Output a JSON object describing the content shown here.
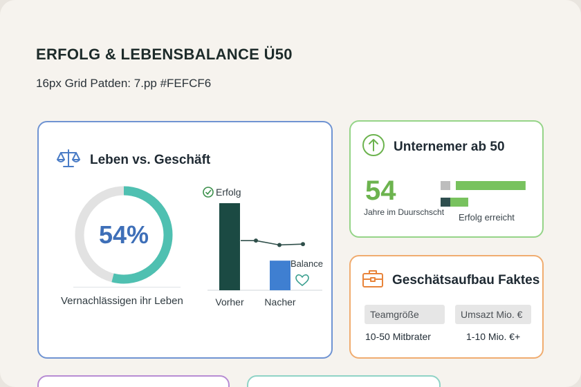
{
  "header": {
    "title": "ERFOLG & LEBENSBALANCE Ü50",
    "subtitle": "16px Grid Patden: 7.pp #FEFCF6"
  },
  "main_card": {
    "title": "Leben vs. Geschäft",
    "icon": "scale-icon",
    "donut": {
      "percent_label": "54%",
      "value": 0.54,
      "label": "Vernachlässigen ihr Leben",
      "color": "#4fc0b1",
      "track": "#e2e2e2"
    },
    "chart_data": {
      "type": "bar",
      "categories": [
        "Vorher",
        "Nacher"
      ],
      "series": [
        {
          "name": "Erfolg",
          "values": [
            100,
            34
          ],
          "colors": [
            "#1b4a43",
            "#3f7fd1"
          ]
        }
      ],
      "annotations": [
        "Erfolg",
        "Balance"
      ],
      "line_values": [
        57,
        52,
        53
      ]
    }
  },
  "unternehmer_card": {
    "title": "Unternemer ab 50",
    "icon": "arrow-up-circle-icon",
    "big_number": "54",
    "number_label": "Jahre im Duurschscht",
    "bar_label": "Erfolg erreicht",
    "bars": [
      {
        "value": 0.82,
        "color": "#78c25e",
        "marker": "#bdbdbd"
      },
      {
        "value": 0.22,
        "color": "#78c25e",
        "marker": "#2f4f4f"
      }
    ]
  },
  "geschaeft_card": {
    "title": "Geschätsaufbau Faktes",
    "icon": "briefcase-icon",
    "columns": [
      {
        "label": "Teamgröße",
        "value": "10-50 Mitbrater"
      },
      {
        "label": "Umsazt Mio. €",
        "value": "1-10 Mio. €+"
      }
    ]
  },
  "colors": {
    "background": "#F6F3EE",
    "blue_border": "#6F93D2",
    "green_border": "#95D488",
    "orange_border": "#F0AC6F",
    "purple_border": "#B78CD3",
    "teal_border": "#8FD3C6"
  }
}
